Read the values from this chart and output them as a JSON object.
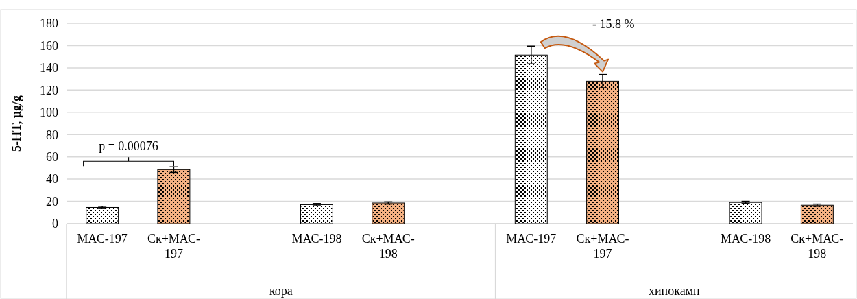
{
  "chart_data": {
    "type": "bar",
    "ylabel": "5-HT, µg/g",
    "categories": [
      "МАС-197",
      "Ск+МАС-197",
      null,
      "МАС-198",
      "Ск+МАС-198",
      null,
      "МАС-197",
      "Ск+МАС-197",
      null,
      "МАС-198",
      "Ск+МАС-198"
    ],
    "values": [
      14.5,
      48.5,
      null,
      17,
      18.5,
      null,
      151.5,
      128,
      null,
      19,
      16.5
    ],
    "errors": [
      1,
      2.5,
      null,
      1,
      1,
      null,
      8,
      6,
      null,
      1,
      1
    ],
    "colors": [
      "#ffffff",
      "#f4b183",
      "#ffffff",
      "#ffffff",
      "#f4b183",
      "#ffffff",
      "#ffffff",
      "#f4b183",
      "#ffffff",
      "#ffffff",
      "#f4b183"
    ],
    "ylim": [
      0,
      180
    ],
    "yticks": [
      0,
      20,
      40,
      60,
      80,
      100,
      120,
      140,
      160,
      180
    ],
    "grid": "y",
    "annotations": [
      {
        "text": "p = 0.00076",
        "x": "Ск+МАС-197",
        "y": 51
      },
      "- 15.8 %",
      "кора",
      "хипокамп"
    ]
  }
}
